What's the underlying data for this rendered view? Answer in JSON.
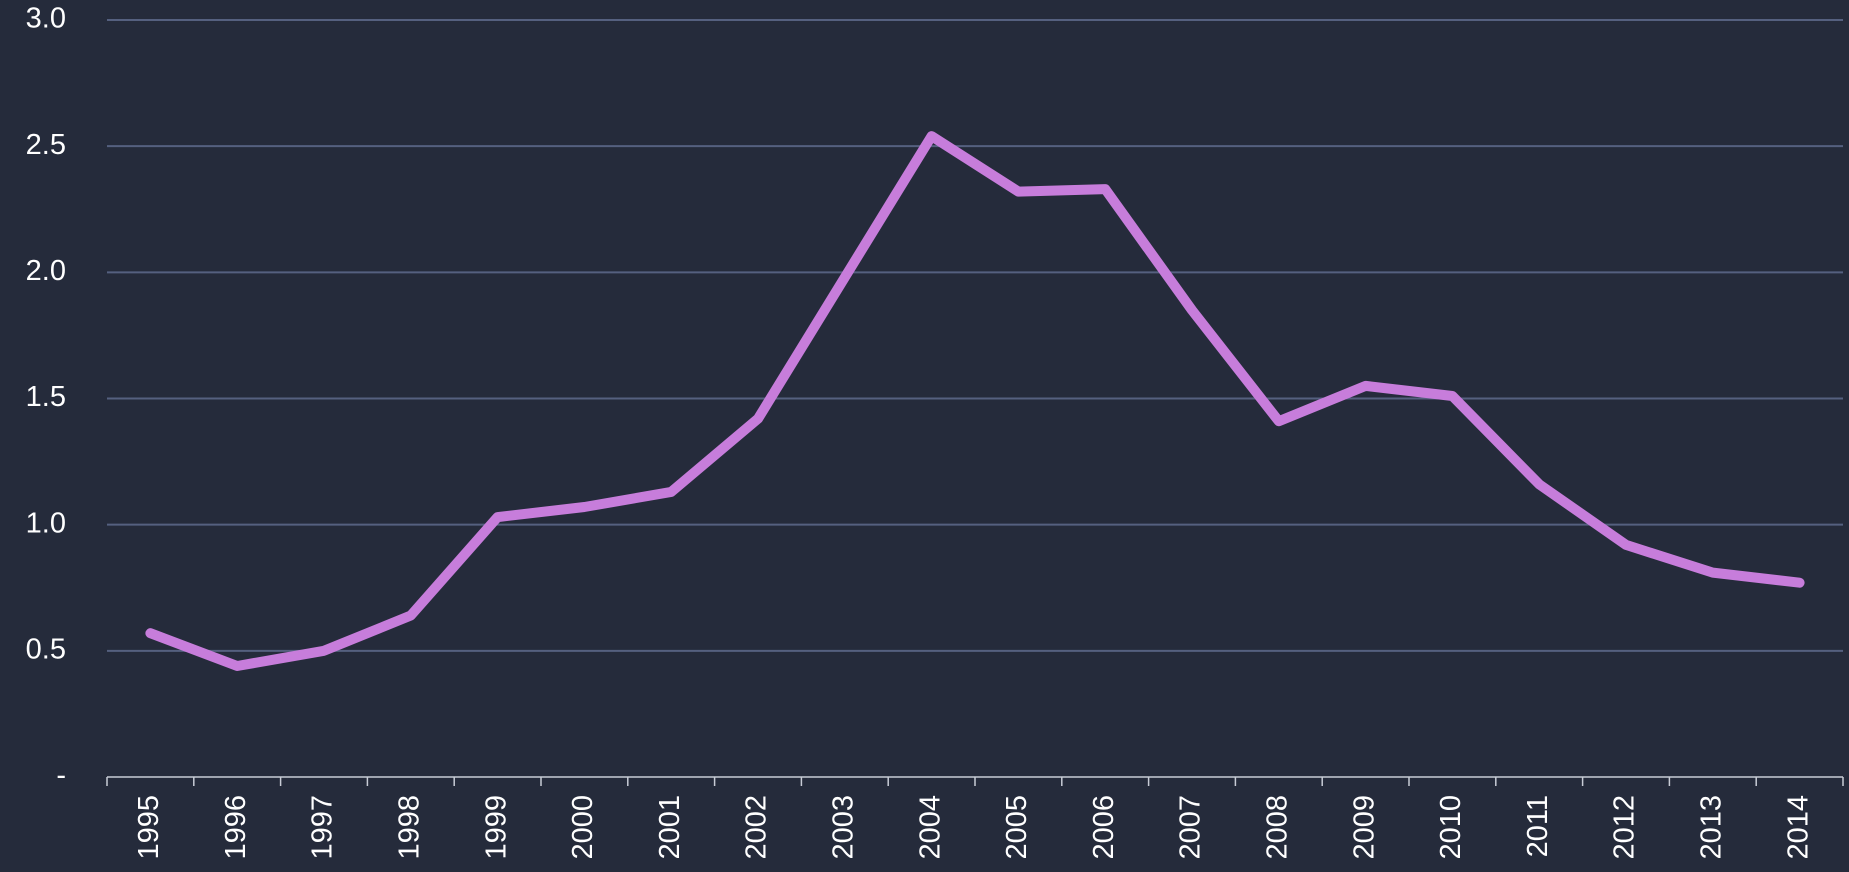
{
  "chart_data": {
    "type": "line",
    "categories": [
      "1995",
      "1996",
      "1997",
      "1998",
      "1999",
      "2000",
      "2001",
      "2002",
      "2003",
      "2004",
      "2005",
      "2006",
      "2007",
      "2008",
      "2009",
      "2010",
      "2011",
      "2012",
      "2013",
      "2014"
    ],
    "series": [
      {
        "color": "#c77ddb",
        "values": [
          0.57,
          0.44,
          0.5,
          0.64,
          1.03,
          1.07,
          1.13,
          1.42,
          1.98,
          2.54,
          2.32,
          2.33,
          1.85,
          1.41,
          1.55,
          1.51,
          1.16,
          0.92,
          0.81,
          0.77
        ]
      }
    ],
    "ylim": [
      0,
      3
    ],
    "yticks": [
      {
        "value": 0,
        "label": "-"
      },
      0.5,
      {
        "value": 1,
        "label": "1.0"
      },
      1.5,
      {
        "value": 2,
        "label": "2.0"
      },
      2.5,
      {
        "value": 3,
        "label": "3.0"
      }
    ],
    "grid": true
  }
}
